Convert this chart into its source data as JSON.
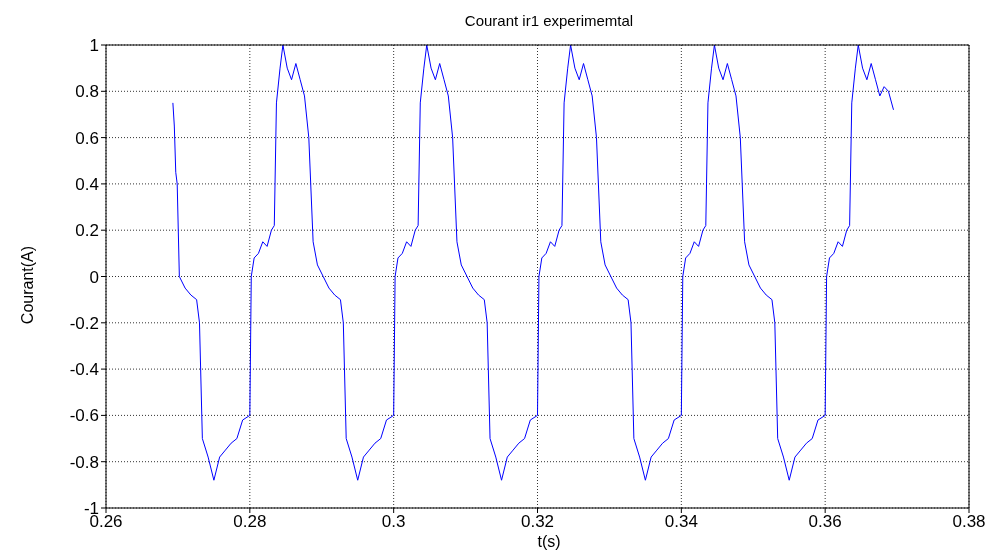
{
  "chart_data": {
    "type": "line",
    "title": "Courant ir1 experimemtal",
    "xlabel": "t(s)",
    "ylabel": "Courant(A)",
    "xlim": [
      0.26,
      0.38
    ],
    "xticks": [
      0.26,
      0.28,
      0.3,
      0.32,
      0.34,
      0.36,
      0.38
    ],
    "ylim": [
      -1,
      1
    ],
    "yticks": [
      -1,
      -0.8,
      -0.6,
      -0.4,
      -0.2,
      0,
      0.2,
      0.4,
      0.6,
      0.8,
      1
    ],
    "grid": true,
    "marker": "none",
    "line_style": "solid",
    "series": [
      {
        "color": "#0000ff",
        "x": [
          0.2693,
          0.2695,
          0.2697,
          0.2699,
          0.2702,
          0.271,
          0.2718,
          0.2726,
          0.273,
          0.2734,
          0.2742,
          0.275,
          0.2758,
          0.2766,
          0.2774,
          0.2782,
          0.279,
          0.28,
          0.2802,
          0.2806,
          0.2812,
          0.2818,
          0.2824,
          0.283,
          0.2834,
          0.2837,
          0.2842,
          0.2846,
          0.2852,
          0.2858,
          0.2864,
          0.287,
          0.2876,
          0.2882,
          0.2888,
          0.2894,
          0.2902,
          0.291,
          0.2918,
          0.2926,
          0.293,
          0.2934,
          0.2942,
          0.295,
          0.2958,
          0.2966,
          0.2974,
          0.2982,
          0.299,
          0.3,
          0.3002,
          0.3006,
          0.3012,
          0.3018,
          0.3024,
          0.303,
          0.3034,
          0.3037,
          0.3042,
          0.3046,
          0.3052,
          0.3058,
          0.3064,
          0.307,
          0.3076,
          0.3082,
          0.3088,
          0.3094,
          0.3102,
          0.311,
          0.3118,
          0.3126,
          0.313,
          0.3134,
          0.3142,
          0.315,
          0.3158,
          0.3166,
          0.3174,
          0.3182,
          0.319,
          0.32,
          0.3202,
          0.3206,
          0.3212,
          0.3218,
          0.3224,
          0.323,
          0.3234,
          0.3237,
          0.3242,
          0.3246,
          0.3252,
          0.3258,
          0.3264,
          0.327,
          0.3276,
          0.3282,
          0.3288,
          0.3294,
          0.3302,
          0.331,
          0.3318,
          0.3326,
          0.333,
          0.3334,
          0.3342,
          0.335,
          0.3358,
          0.3366,
          0.3374,
          0.3382,
          0.339,
          0.34,
          0.3402,
          0.3406,
          0.3412,
          0.3418,
          0.3424,
          0.343,
          0.3434,
          0.3437,
          0.3442,
          0.3446,
          0.3452,
          0.3458,
          0.3464,
          0.347,
          0.3476,
          0.3482,
          0.3488,
          0.3494,
          0.3502,
          0.351,
          0.3518,
          0.3526,
          0.353,
          0.3534,
          0.3542,
          0.355,
          0.3558,
          0.3566,
          0.3574,
          0.3582,
          0.359,
          0.36,
          0.3602,
          0.3606,
          0.3612,
          0.3618,
          0.3624,
          0.363,
          0.3634,
          0.3637,
          0.3642,
          0.3646,
          0.3652,
          0.3658,
          0.3664,
          0.367,
          0.3676,
          0.3682,
          0.3688,
          0.3695
        ],
        "values": [
          0.75,
          0.65,
          0.45,
          0.4,
          0,
          -0.05,
          -0.08,
          -0.1,
          -0.2,
          -0.7,
          -0.78,
          -0.88,
          -0.78,
          -0.75,
          -0.72,
          -0.7,
          -0.62,
          -0.6,
          0,
          0.08,
          0.1,
          0.15,
          0.13,
          0.2,
          0.22,
          0.75,
          0.9,
          1,
          0.9,
          0.85,
          0.92,
          0.85,
          0.78,
          0.6,
          0.15,
          0.05,
          0,
          -0.05,
          -0.08,
          -0.1,
          -0.2,
          -0.7,
          -0.78,
          -0.88,
          -0.78,
          -0.75,
          -0.72,
          -0.7,
          -0.62,
          -0.6,
          0,
          0.08,
          0.1,
          0.15,
          0.13,
          0.2,
          0.22,
          0.75,
          0.9,
          1,
          0.9,
          0.85,
          0.92,
          0.85,
          0.78,
          0.6,
          0.15,
          0.05,
          0,
          -0.05,
          -0.08,
          -0.1,
          -0.2,
          -0.7,
          -0.78,
          -0.88,
          -0.78,
          -0.75,
          -0.72,
          -0.7,
          -0.62,
          -0.6,
          0,
          0.08,
          0.1,
          0.15,
          0.13,
          0.2,
          0.22,
          0.75,
          0.9,
          1,
          0.9,
          0.85,
          0.92,
          0.85,
          0.78,
          0.6,
          0.15,
          0.05,
          0,
          -0.05,
          -0.08,
          -0.1,
          -0.2,
          -0.7,
          -0.78,
          -0.88,
          -0.78,
          -0.75,
          -0.72,
          -0.7,
          -0.62,
          -0.6,
          0,
          0.08,
          0.1,
          0.15,
          0.13,
          0.2,
          0.22,
          0.75,
          0.9,
          1,
          0.9,
          0.85,
          0.92,
          0.85,
          0.78,
          0.6,
          0.15,
          0.05,
          0,
          -0.05,
          -0.08,
          -0.1,
          -0.2,
          -0.7,
          -0.78,
          -0.88,
          -0.78,
          -0.75,
          -0.72,
          -0.7,
          -0.62,
          -0.6,
          0,
          0.08,
          0.1,
          0.15,
          0.13,
          0.2,
          0.22,
          0.75,
          0.9,
          1,
          0.9,
          0.85,
          0.92,
          0.85,
          0.78,
          0.82,
          0.8,
          0.72
        ]
      }
    ]
  }
}
